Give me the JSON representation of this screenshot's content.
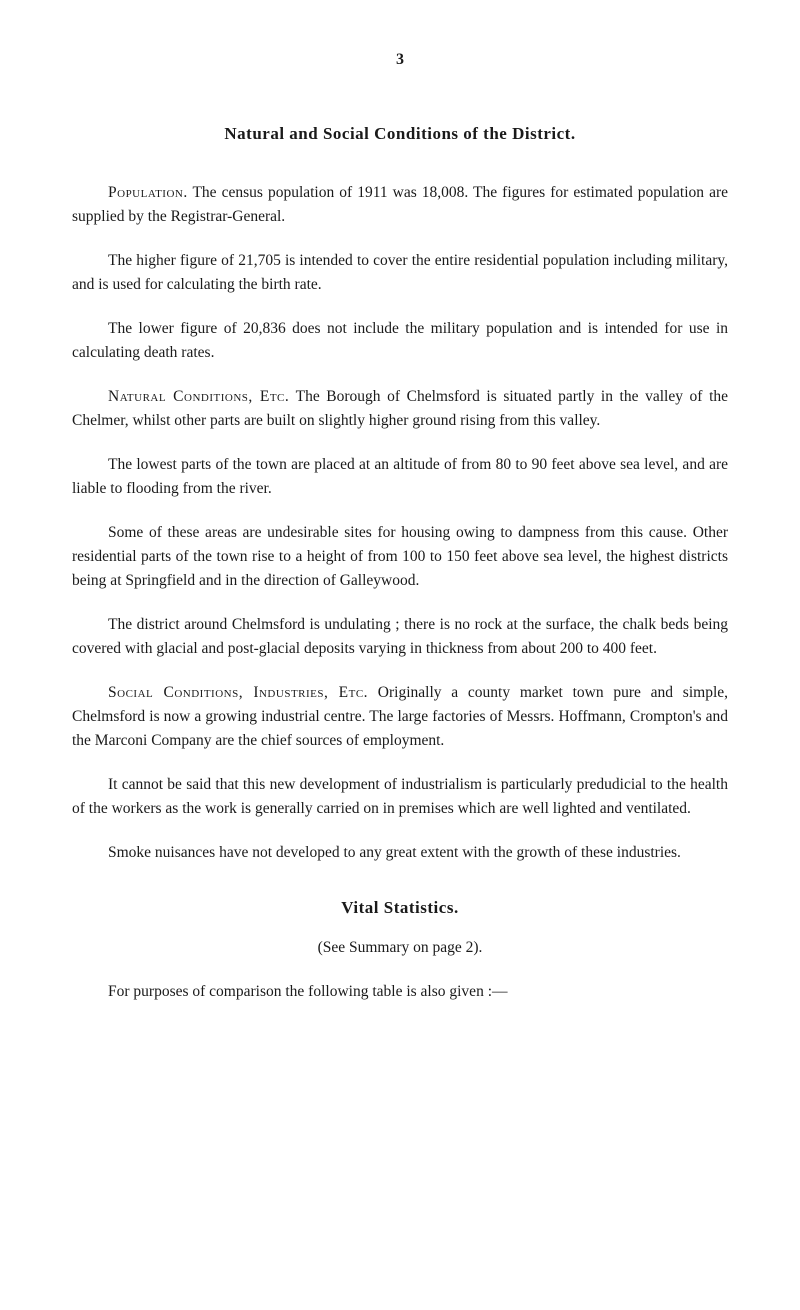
{
  "page_number": "3",
  "heading1": "Natural and Social Conditions of the District.",
  "p1_lead": "Population.",
  "p1_rest": " The census population of 1911 was 18,008. The figures for estimated population are supplied by the Registrar-General.",
  "p2": "The higher figure of 21,705 is intended to cover the entire residential population including military, and is used for calculating the birth rate.",
  "p3": "The lower figure of 20,836 does not include the military population and is intended for use in calculating death rates.",
  "p4_lead": "Natural Conditions, Etc.",
  "p4_rest": " The Borough of Chelmsford is situated partly in the valley of the Chelmer, whilst other parts are built on slightly higher ground rising from this valley.",
  "p5": "The lowest parts of the town are placed at an altitude of from 80 to 90 feet above sea level, and are liable to flooding from the river.",
  "p6": "Some of these areas are undesirable sites for housing owing to dampness from this cause. Other residential parts of the town rise to a height of from 100 to 150 feet above sea level, the highest districts being at Springfield and in the direction of Galleywood.",
  "p7": "The district around Chelmsford is undulating ; there is no rock at the surface, the chalk beds being covered with glacial and post-glacial deposits varying in thickness from about 200 to 400 feet.",
  "p8_lead": "Social Conditions, Industries, Etc.",
  "p8_rest": " Originally a county market town pure and simple, Chelmsford is now a growing industrial centre. The large factories of Messrs. Hoffmann, Crompton's and the Marconi Company are the chief sources of employment.",
  "p9": "It cannot be said that this new development of industrialism is particularly predudicial to the health of the workers as the work is generally carried on in premises which are well lighted and ventilated.",
  "p10": "Smoke nuisances have not developed to any great extent with the growth of these industries.",
  "heading2": "Vital Statistics.",
  "summary_note": "(See Summary on page 2).",
  "p11": "For purposes of comparison the following table is also given :—"
}
